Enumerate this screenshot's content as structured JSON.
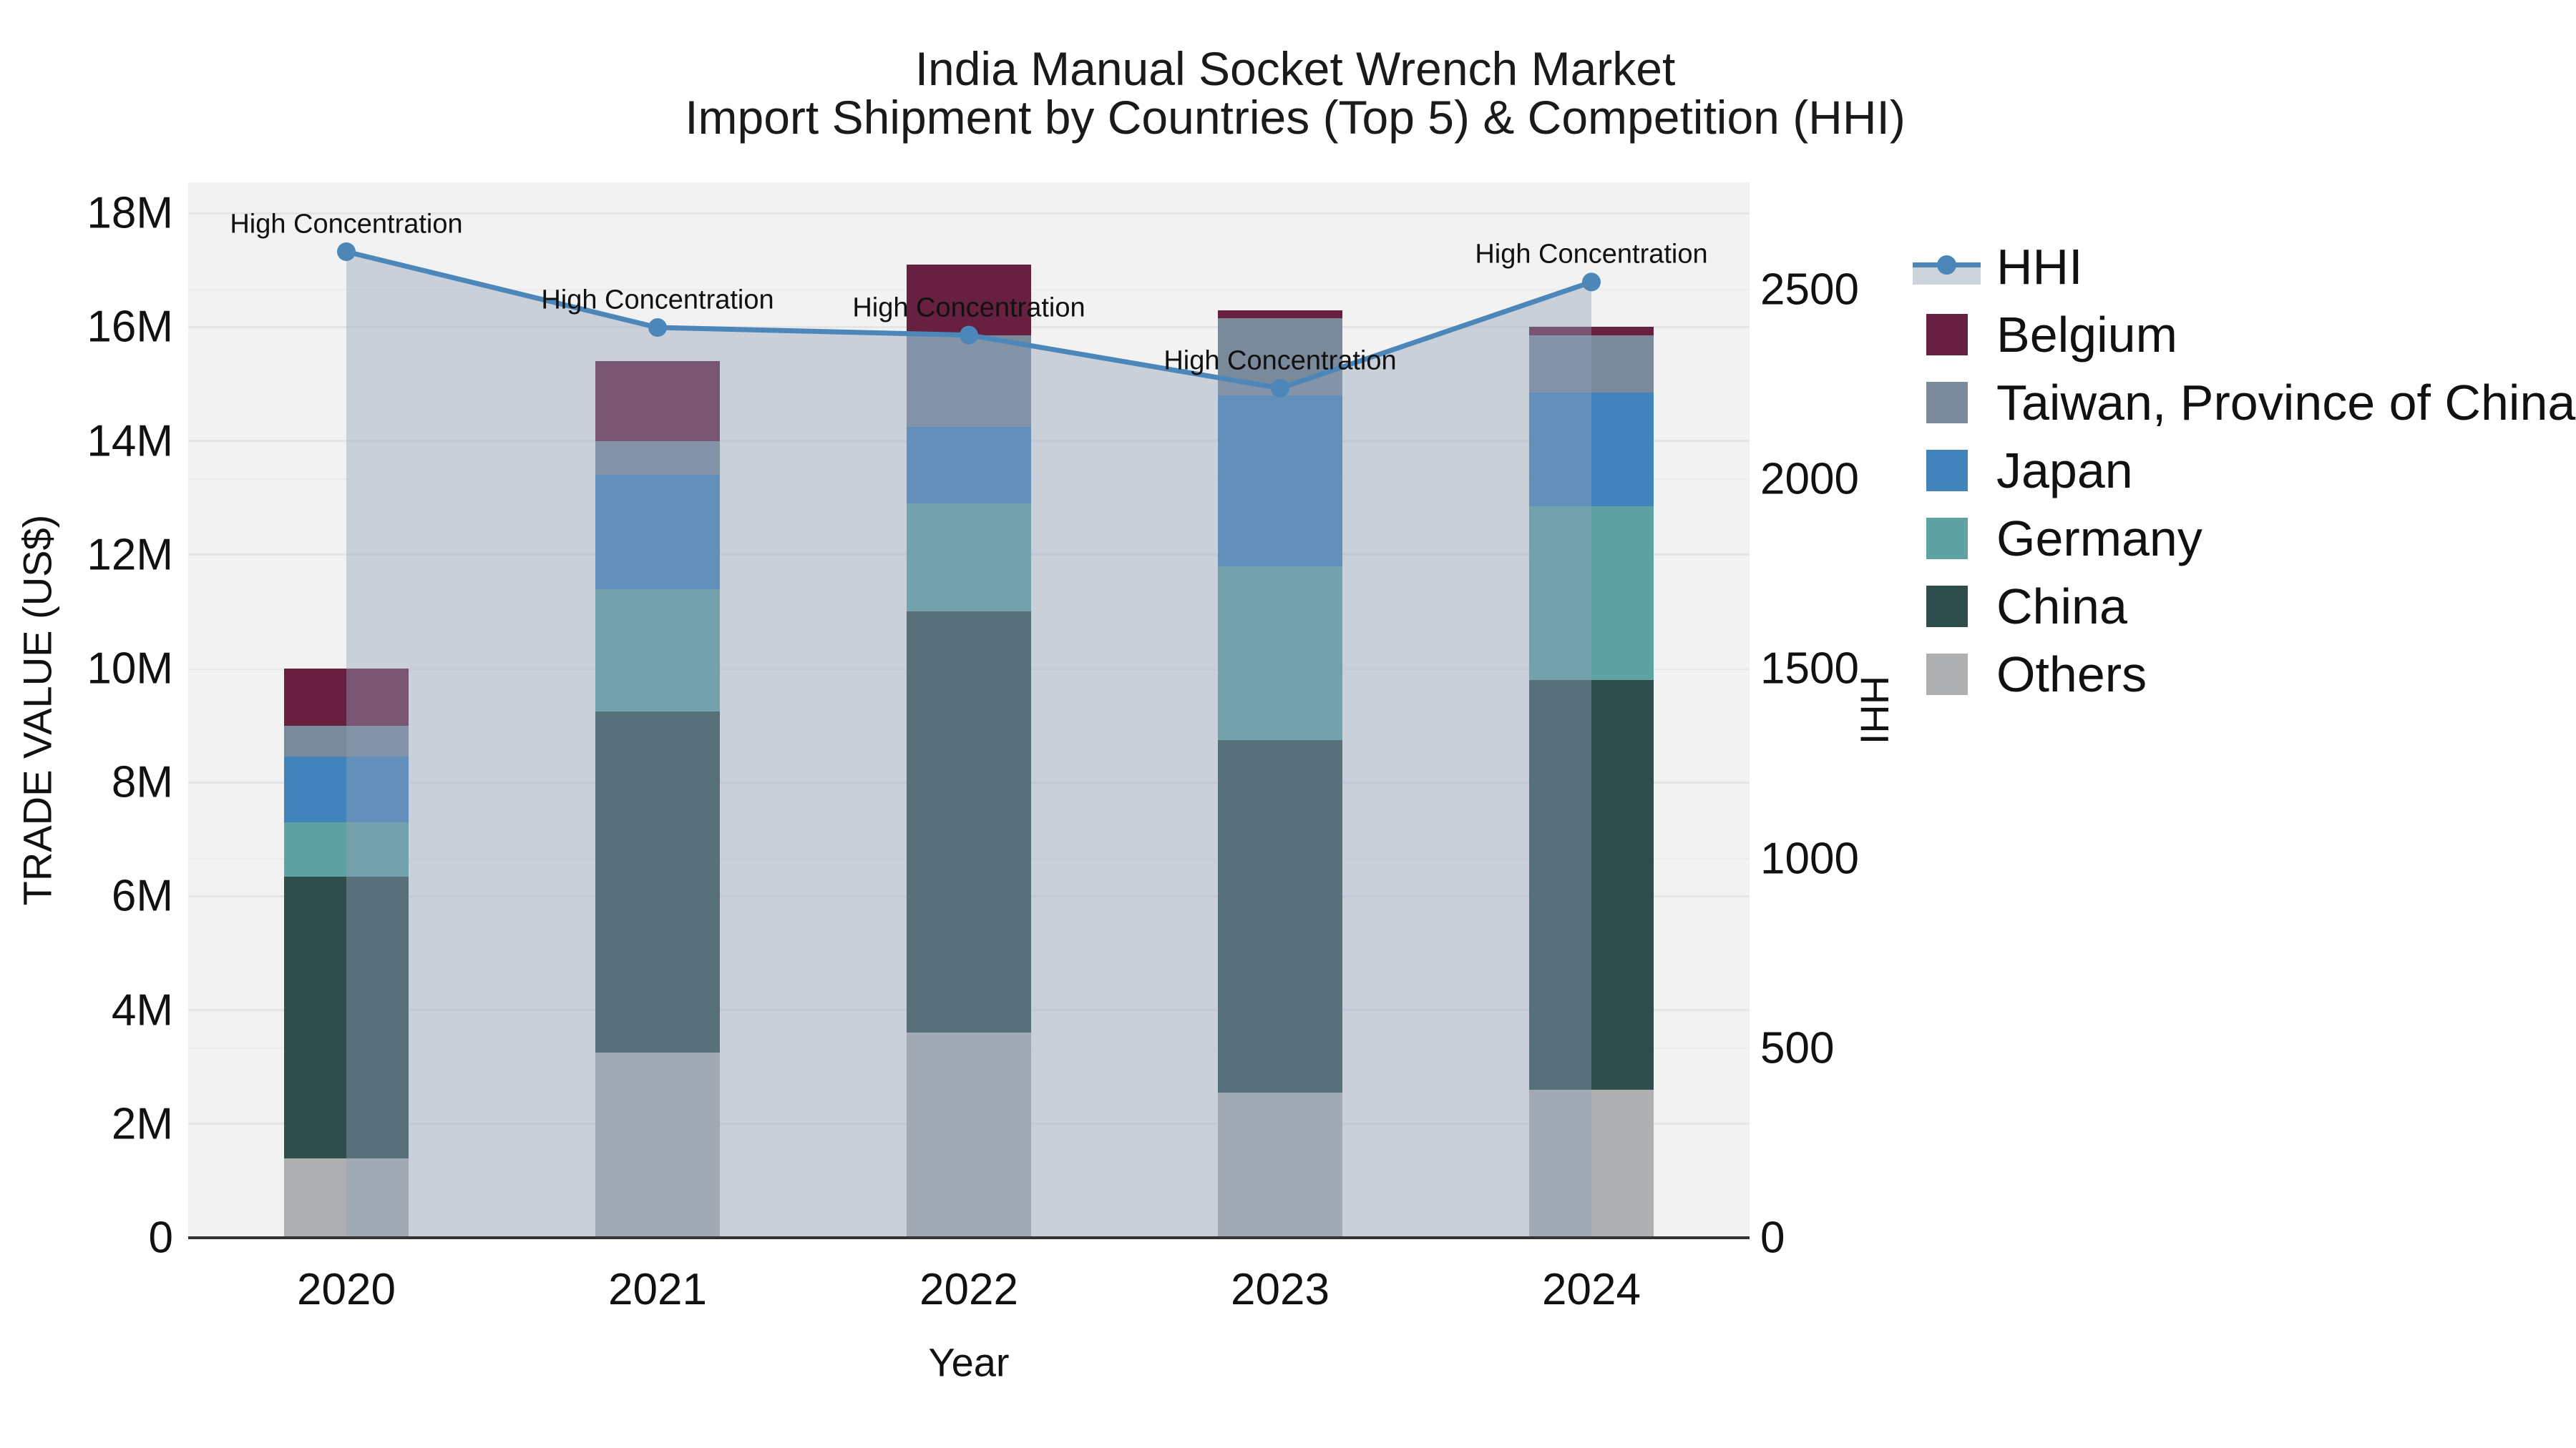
{
  "title": {
    "line1": "India Manual Socket Wrench Market",
    "line2": "Import Shipment by Countries (Top 5) & Competition (HHI)"
  },
  "axes": {
    "x_label": "Year",
    "y_left_label": "TRADE VALUE (US$)",
    "y_right_label": "HHI",
    "x_ticks": [
      "2020",
      "2021",
      "2022",
      "2023",
      "2024"
    ],
    "y_left_ticks": [
      "0",
      "2M",
      "4M",
      "6M",
      "8M",
      "10M",
      "12M",
      "14M",
      "16M",
      "18M"
    ],
    "y_right_ticks": [
      "0",
      "500",
      "1000",
      "1500",
      "2000",
      "2500"
    ]
  },
  "legend": {
    "entries": [
      {
        "label": "HHI",
        "type": "line",
        "color": "#4d87ba"
      },
      {
        "label": "Belgium",
        "type": "patch",
        "color": "#67203f"
      },
      {
        "label": "Taiwan, Province of China",
        "type": "patch",
        "color": "#7b8a9b"
      },
      {
        "label": "Japan",
        "type": "patch",
        "color": "#4184bb"
      },
      {
        "label": "Germany",
        "type": "patch",
        "color": "#5fa2a2"
      },
      {
        "label": "China",
        "type": "patch",
        "color": "#2e4d4b"
      },
      {
        "label": "Others",
        "type": "patch",
        "color": "#adafb1"
      }
    ]
  },
  "chart_data": {
    "type": "combo-stacked-bar-line",
    "categories": [
      "2020",
      "2021",
      "2022",
      "2023",
      "2024"
    ],
    "bar_value_unit": "million US$",
    "series": [
      {
        "name": "Others",
        "color": "#adafb1",
        "values": [
          1.4,
          3.25,
          3.6,
          2.55,
          2.6
        ]
      },
      {
        "name": "China",
        "color": "#2e4d4b",
        "values": [
          4.95,
          6.0,
          7.4,
          6.2,
          7.2
        ]
      },
      {
        "name": "Germany",
        "color": "#5fa2a2",
        "values": [
          0.95,
          2.15,
          1.9,
          3.05,
          3.05
        ]
      },
      {
        "name": "Japan",
        "color": "#4184bb",
        "values": [
          1.15,
          2.0,
          1.35,
          3.0,
          2.0
        ]
      },
      {
        "name": "Taiwan, Province of China",
        "color": "#7b8a9b",
        "values": [
          0.55,
          0.6,
          1.6,
          1.35,
          1.0
        ]
      },
      {
        "name": "Belgium",
        "color": "#67203f",
        "values": [
          1.0,
          1.4,
          1.25,
          0.15,
          0.15
        ]
      }
    ],
    "bar_totals": [
      10.0,
      15.4,
      17.1,
      16.3,
      16.0
    ],
    "line": {
      "name": "HHI",
      "color": "#4d87ba",
      "area_fill_color": "rgba(145,162,185,0.42)",
      "values": [
        2600,
        2400,
        2380,
        2240,
        2520
      ]
    },
    "annotations": [
      {
        "text": "High Concentration",
        "category": "2020"
      },
      {
        "text": "High Concentration",
        "category": "2021"
      },
      {
        "text": "High Concentration",
        "category": "2022"
      },
      {
        "text": "High Concentration",
        "category": "2023"
      },
      {
        "text": "High Concentration",
        "category": "2024"
      }
    ],
    "xlabel": "Year",
    "ylabel_left": "TRADE VALUE (US$)",
    "ylabel_right": "HHI",
    "ylim_left_M": [
      0,
      18.53
    ],
    "ylim_right": [
      0,
      2783
    ],
    "grid": true,
    "legend_position": "right"
  }
}
